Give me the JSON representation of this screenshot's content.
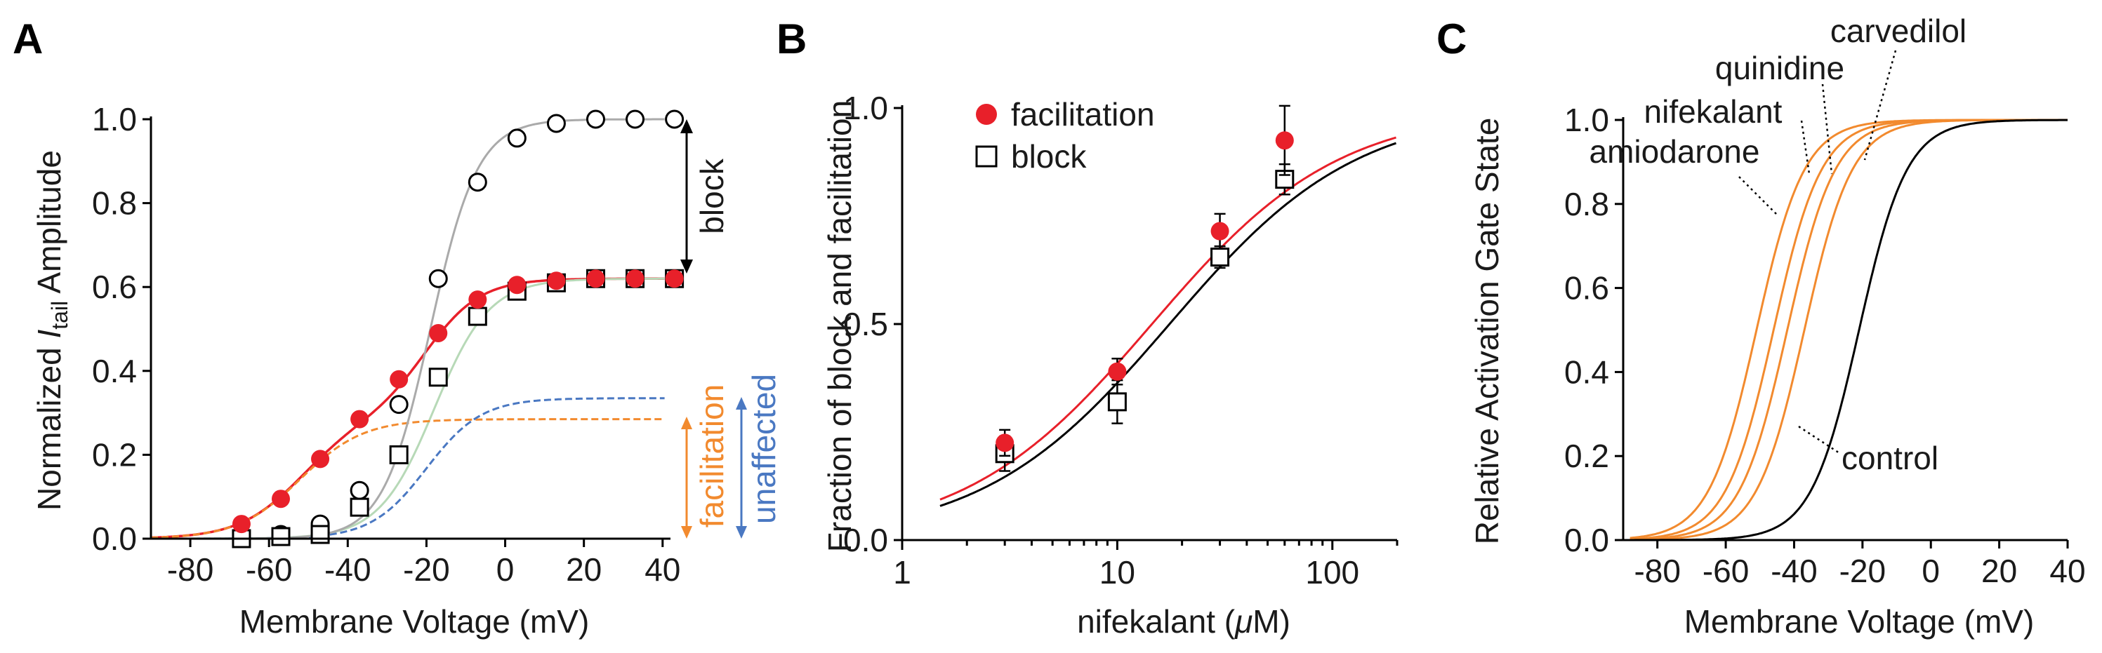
{
  "colors": {
    "red": "#e8202a",
    "orange": "#f28a2e",
    "blue": "#4a78c2",
    "gray": "#aaaaaa",
    "green": "#b7d9b7",
    "black": "#000000"
  },
  "chart_data": [
    {
      "panel": "A",
      "type": "line",
      "title": "",
      "xlabel": "Membrane Voltage (mV)",
      "ylabel_prefix": "Normalized ",
      "ylabel_italic": "I",
      "ylabel_sub": "tail",
      "ylabel_suffix": " Amplitude",
      "xlim": [
        -90,
        42
      ],
      "ylim": [
        0,
        1.0
      ],
      "xticks": [
        -80,
        -60,
        -40,
        -20,
        0,
        20,
        40
      ],
      "xtick_labels": [
        "-80",
        "-60",
        "-40",
        "-20",
        "0",
        "20",
        "40"
      ],
      "yticks": [
        0,
        0.2,
        0.4,
        0.6,
        0.8,
        1.0
      ],
      "ytick_labels": [
        "0.0",
        "0.2",
        "0.4",
        "0.6",
        "0.8",
        "1.0"
      ],
      "series": [
        {
          "marker": "open-circle",
          "line_color": "#aaaaaa",
          "x": [
            -67,
            -57,
            -47,
            -37,
            -27,
            -17,
            -7,
            3,
            13,
            23,
            33,
            43
          ],
          "y": [
            0.0,
            0.01,
            0.035,
            0.115,
            0.32,
            0.62,
            0.85,
            0.955,
            0.99,
            1.0,
            1.0,
            1.0
          ],
          "fit": {
            "top": 1.0,
            "v_half": -19,
            "k": 6
          }
        },
        {
          "marker": "filled-circle",
          "line_color": "#e8202a",
          "x": [
            -67,
            -57,
            -47,
            -37,
            -27,
            -17,
            -7,
            3,
            13,
            23,
            33,
            43
          ],
          "y": [
            0.035,
            0.095,
            0.19,
            0.285,
            0.38,
            0.49,
            0.57,
            0.605,
            0.615,
            0.62,
            0.62,
            0.62
          ],
          "fit": {
            "parts": [
              {
                "top": 0.285,
                "v_half": -52,
                "k": 8
              },
              {
                "top": 0.335,
                "v_half": -20,
                "k": 7
              }
            ]
          }
        },
        {
          "marker": "open-square",
          "line_color": "#b7d9b7",
          "x": [
            -67,
            -57,
            -47,
            -37,
            -27,
            -17,
            -7,
            3,
            13,
            23,
            33,
            43
          ],
          "y": [
            0.0,
            0.005,
            0.01,
            0.075,
            0.2,
            0.385,
            0.53,
            0.59,
            0.61,
            0.62,
            0.62,
            0.62
          ],
          "fit": {
            "top": 0.62,
            "v_half": -18,
            "k": 7
          }
        },
        {
          "marker": "none",
          "style": "dashed",
          "line_color": "#f28a2e",
          "fit": {
            "top": 0.285,
            "v_half": -52,
            "k": 8
          }
        },
        {
          "marker": "none",
          "style": "dashed",
          "line_color": "#4a78c2",
          "fit": {
            "top": 0.335,
            "v_half": -20,
            "k": 7
          }
        }
      ],
      "annotations": {
        "block": "block",
        "facilitation": "facilitation",
        "unaffected": "unaffected"
      }
    },
    {
      "panel": "B",
      "type": "scatter",
      "title": "",
      "xlabel_prefix": "nifekalant (",
      "xlabel_mu": "μ",
      "xlabel_suffix": "M)",
      "ylabel": "Fraction of block and facilitation",
      "xscale": "log",
      "xlim": [
        1,
        200
      ],
      "ylim": [
        0,
        1.0
      ],
      "xticks": [
        1,
        10,
        100
      ],
      "xtick_labels": [
        "1",
        "10",
        "100"
      ],
      "yticks": [
        0,
        0.5,
        1.0
      ],
      "ytick_labels": [
        "0.0",
        "0.5",
        "1.0"
      ],
      "legend_position": "top-left",
      "series": [
        {
          "name": "facilitation",
          "marker": "filled-circle",
          "color": "#e8202a",
          "x": [
            3,
            10,
            30,
            60
          ],
          "y": [
            0.225,
            0.39,
            0.715,
            0.925
          ],
          "err": [
            0.03,
            0.03,
            0.04,
            0.08
          ],
          "fit": {
            "ec50": 14.5,
            "hill": 1.0
          }
        },
        {
          "name": "block",
          "marker": "open-square",
          "color": "#000000",
          "x": [
            3,
            10,
            30,
            60
          ],
          "y": [
            0.2,
            0.32,
            0.655,
            0.835
          ],
          "err": [
            0.04,
            0.05,
            0.025,
            0.035
          ],
          "fit": {
            "ec50": 17.5,
            "hill": 1.0
          }
        }
      ]
    },
    {
      "panel": "C",
      "type": "line",
      "title": "",
      "xlabel": "Membrane Voltage (mV)",
      "ylabel": "Relative Activation Gate State",
      "xlim": [
        -90,
        40
      ],
      "ylim": [
        0,
        1.0
      ],
      "xticks": [
        -80,
        -60,
        -40,
        -20,
        0,
        20,
        40
      ],
      "xtick_labels": [
        "-80",
        "-60",
        "-40",
        "-20",
        "0",
        "20",
        "40"
      ],
      "yticks": [
        0,
        0.2,
        0.4,
        0.6,
        0.8,
        1.0
      ],
      "ytick_labels": [
        "0.0",
        "0.2",
        "0.4",
        "0.6",
        "0.8",
        "1.0"
      ],
      "series": [
        {
          "name": "amiodarone",
          "color": "#f28a2e",
          "v_half": -51,
          "k": 7
        },
        {
          "name": "nifekalant",
          "color": "#f28a2e",
          "v_half": -46,
          "k": 7
        },
        {
          "name": "quinidine",
          "color": "#f28a2e",
          "v_half": -42,
          "k": 7
        },
        {
          "name": "carvedilol",
          "color": "#f28a2e",
          "v_half": -37,
          "k": 7
        },
        {
          "name": "control",
          "color": "#000000",
          "v_half": -21,
          "k": 7
        }
      ]
    }
  ]
}
